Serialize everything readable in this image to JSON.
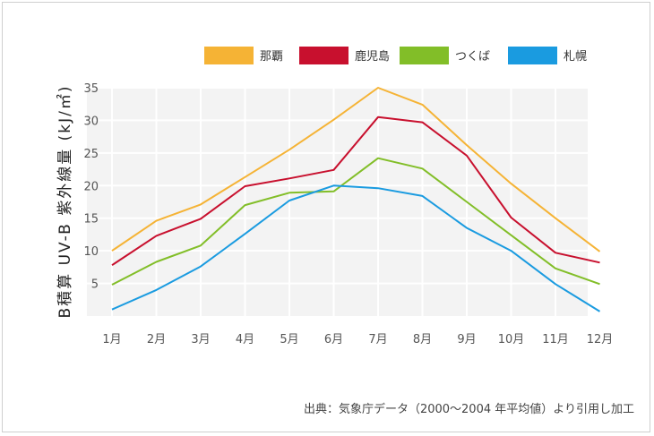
{
  "chart_data": {
    "type": "line",
    "ylabel": "B積算 UV-B 紫外線量 (kJ/㎡)",
    "xlabel": "",
    "categories": [
      "1月",
      "2月",
      "3月",
      "4月",
      "5月",
      "6月",
      "7月",
      "8月",
      "9月",
      "10月",
      "11月",
      "12月"
    ],
    "yticks": [
      "5",
      "10",
      "15",
      "20",
      "25",
      "30",
      "35"
    ],
    "ylim": [
      0,
      35
    ],
    "grid": true,
    "legend_position": "top-right",
    "series": [
      {
        "name": "那覇",
        "color": "#f5b335",
        "values": [
          10.0,
          14.6,
          17.1,
          21.3,
          25.5,
          30.1,
          35.0,
          32.4,
          26.2,
          20.3,
          15.0,
          9.9
        ]
      },
      {
        "name": "鹿児島",
        "color": "#c8102e",
        "values": [
          7.8,
          12.3,
          14.9,
          19.9,
          21.1,
          22.4,
          30.5,
          29.7,
          24.6,
          15.1,
          9.7,
          8.2
        ]
      },
      {
        "name": "つくば",
        "color": "#82be28",
        "values": [
          4.8,
          8.3,
          10.8,
          17.0,
          18.9,
          19.1,
          24.2,
          22.6,
          17.5,
          12.4,
          7.3,
          4.9
        ]
      },
      {
        "name": "札幌",
        "color": "#1a9be0",
        "values": [
          1.0,
          4.0,
          7.6,
          12.6,
          17.7,
          20.0,
          19.6,
          18.4,
          13.5,
          10.0,
          4.9,
          0.7
        ]
      }
    ]
  },
  "source": "出典：気象庁データ（2000〜2004 年平均値）より引用し加工"
}
